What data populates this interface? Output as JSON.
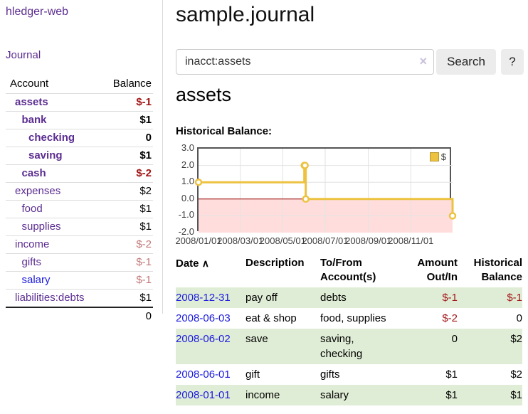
{
  "palette": {
    "link_purple": "#5c2d91",
    "link_blue": "#1b1be0",
    "negative_strong": "#a31515",
    "negative_muted": "#c27878",
    "row_stripe_green": "#e0edd6",
    "chart_line_gold": "#edc240",
    "chart_negative_pink": "#ffdddd",
    "chart_zero_line": "#990000"
  },
  "app": {
    "brand": "hledger-web",
    "nav_journal": "Journal"
  },
  "sidebar": {
    "columns": {
      "account": "Account",
      "balance": "Balance"
    },
    "accounts": [
      {
        "name": "assets",
        "depth": 0,
        "bold": true,
        "balance": "$-1",
        "balance_style": "neg-strong",
        "link_color": "purple"
      },
      {
        "name": "bank",
        "depth": 1,
        "bold": true,
        "balance": "$1",
        "balance_style": "pos",
        "link_color": "purple"
      },
      {
        "name": "checking",
        "depth": 2,
        "bold": true,
        "balance": "0",
        "balance_style": "pos",
        "link_color": "purple"
      },
      {
        "name": "saving",
        "depth": 2,
        "bold": true,
        "balance": "$1",
        "balance_style": "pos",
        "link_color": "purple"
      },
      {
        "name": "cash",
        "depth": 1,
        "bold": true,
        "balance": "$-2",
        "balance_style": "neg-strong",
        "link_color": "purple"
      },
      {
        "name": "expenses",
        "depth": 0,
        "bold": false,
        "balance": "$2",
        "balance_style": "pos",
        "link_color": "purple"
      },
      {
        "name": "food",
        "depth": 1,
        "bold": false,
        "balance": "$1",
        "balance_style": "pos",
        "link_color": "purple"
      },
      {
        "name": "supplies",
        "depth": 1,
        "bold": false,
        "balance": "$1",
        "balance_style": "pos",
        "link_color": "purple"
      },
      {
        "name": "income",
        "depth": 0,
        "bold": false,
        "balance": "$-2",
        "balance_style": "neg-muted",
        "link_color": "purple"
      },
      {
        "name": "gifts",
        "depth": 1,
        "bold": false,
        "balance": "$-1",
        "balance_style": "neg-muted",
        "link_color": "purple"
      },
      {
        "name": "salary",
        "depth": 1,
        "bold": false,
        "balance": "$-1",
        "balance_style": "neg-muted",
        "link_color": "blue"
      },
      {
        "name": "liabilities:debts",
        "depth": 0,
        "bold": false,
        "balance": "$1",
        "balance_style": "pos",
        "link_color": "purple"
      }
    ],
    "total": "0"
  },
  "header": {
    "title": "sample.journal"
  },
  "search": {
    "value": "inacct:assets",
    "clear_icon": "×",
    "button_label": "Search",
    "help_label": "?"
  },
  "account_page": {
    "heading": "assets",
    "chart_label": "Historical Balance:"
  },
  "chart_data": {
    "type": "line",
    "title": "Historical Balance",
    "step": true,
    "series": [
      {
        "name": "$",
        "color": "#edc240",
        "points": [
          [
            "2008-01-01",
            1
          ],
          [
            "2008-06-01",
            2
          ],
          [
            "2008-06-02",
            2
          ],
          [
            "2008-06-03",
            0
          ],
          [
            "2008-12-31",
            -1
          ]
        ]
      }
    ],
    "x_range": [
      "2008-01-01",
      "2008-12-31"
    ],
    "y_range": [
      -2,
      3
    ],
    "y_ticks": [
      "3.0",
      "2.0",
      "1.0",
      "0.0",
      "-1.0",
      "-2.0"
    ],
    "x_ticks": [
      "2008/01/01",
      "2008/03/01",
      "2008/05/01",
      "2008/07/01",
      "2008/09/01",
      "2008/11/01"
    ],
    "legend": {
      "label": "$",
      "position": "top-right"
    },
    "grid": true,
    "negative_region_color": "#ffdddd",
    "zero_line_color": "#990000"
  },
  "register": {
    "columns": [
      "Date",
      "Description",
      "To/From Account(s)",
      "Amount Out/In",
      "Historical Balance"
    ],
    "sort_indicator": "∧",
    "rows": [
      {
        "date": "2008-12-31",
        "description": "pay off",
        "accounts": "debts",
        "amount": "$-1",
        "amount_neg": true,
        "balance": "$-1",
        "balance_neg": true
      },
      {
        "date": "2008-06-03",
        "description": "eat & shop",
        "accounts": "food, supplies",
        "amount": "$-2",
        "amount_neg": true,
        "balance": "0",
        "balance_neg": false
      },
      {
        "date": "2008-06-02",
        "description": "save",
        "accounts": "saving, checking",
        "amount": "0",
        "amount_neg": false,
        "balance": "$2",
        "balance_neg": false
      },
      {
        "date": "2008-06-01",
        "description": "gift",
        "accounts": "gifts",
        "amount": "$1",
        "amount_neg": false,
        "balance": "$2",
        "balance_neg": false
      },
      {
        "date": "2008-01-01",
        "description": "income",
        "accounts": "salary",
        "amount": "$1",
        "amount_neg": false,
        "balance": "$1",
        "balance_neg": false
      }
    ]
  }
}
